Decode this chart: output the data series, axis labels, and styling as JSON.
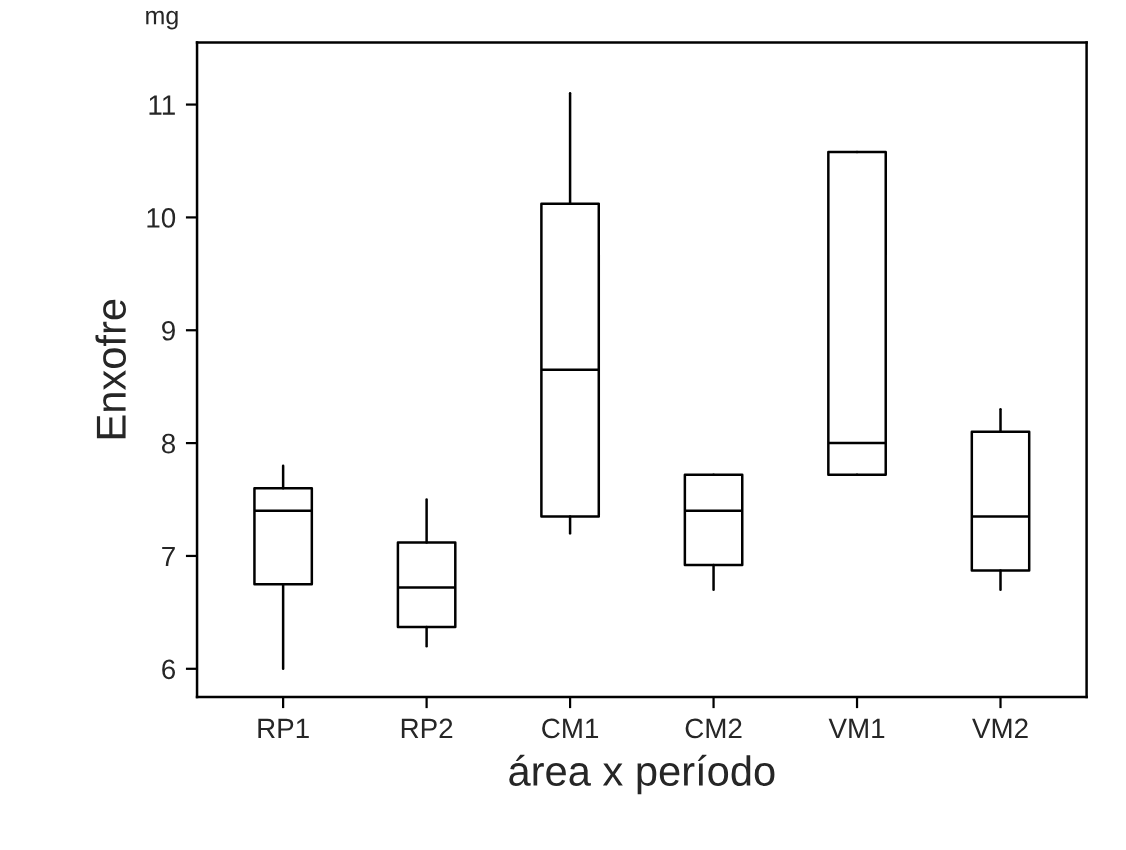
{
  "chart_data": {
    "type": "box",
    "xlabel": "área x período",
    "ylabel": "Enxofre",
    "annotations": [
      "mg"
    ],
    "categories": [
      "RP1",
      "RP2",
      "CM1",
      "CM2",
      "VM1",
      "VM2"
    ],
    "boxes": [
      {
        "low": 6.0,
        "q1": 6.75,
        "median": 7.4,
        "q3": 7.6,
        "high": 7.8
      },
      {
        "low": 6.2,
        "q1": 6.37,
        "median": 6.72,
        "q3": 7.12,
        "high": 7.5
      },
      {
        "low": 7.2,
        "q1": 7.35,
        "median": 8.65,
        "q3": 10.12,
        "high": 11.1
      },
      {
        "low": 6.7,
        "q1": 6.92,
        "median": 7.4,
        "q3": 7.72,
        "high": 7.72
      },
      {
        "low": 7.72,
        "q1": 7.72,
        "median": 8.0,
        "q3": 10.58,
        "high": 10.58
      },
      {
        "low": 6.7,
        "q1": 6.87,
        "median": 7.35,
        "q3": 8.1,
        "high": 8.3
      }
    ],
    "color": "#000000",
    "ylim": [
      5.75,
      11.55
    ],
    "yticks": [
      6,
      7,
      8,
      9,
      10,
      11
    ],
    "grid": false
  }
}
